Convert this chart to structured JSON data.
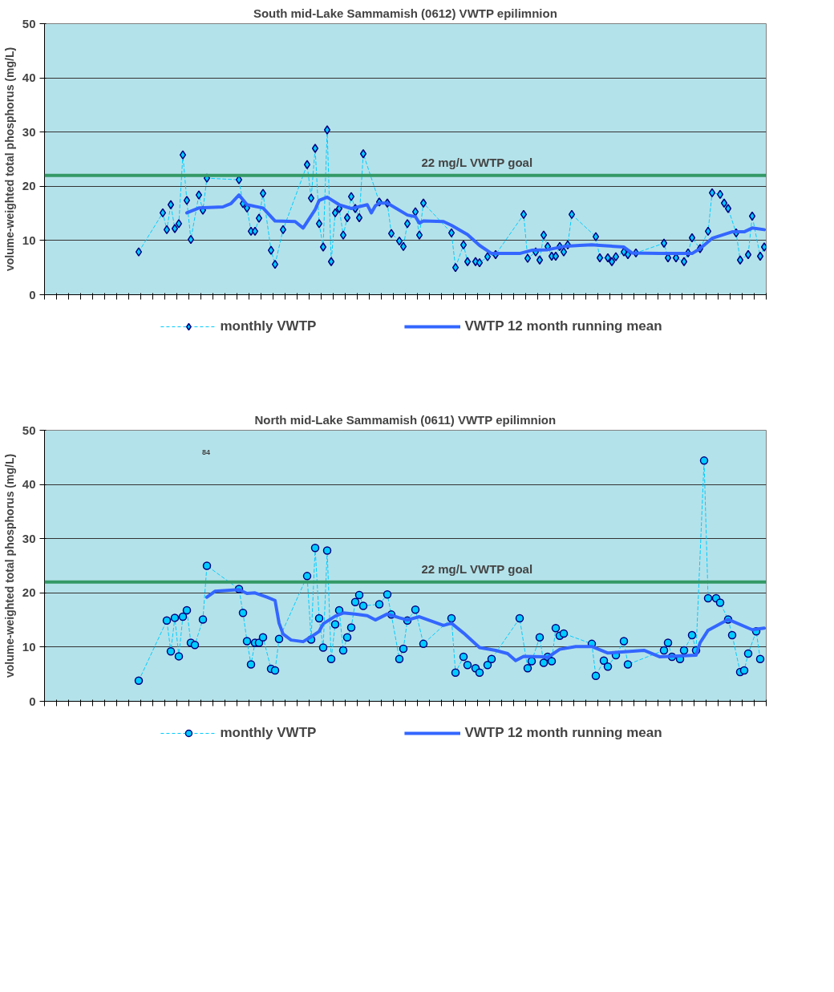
{
  "chart_data": [
    {
      "type": "line",
      "title": "South mid-Lake Sammamish (0612) VWTP epilimnion",
      "ylabel": "volume-weighted total phosphorus (mg/L)",
      "categories": [
        null,
        null,
        null,
        null,
        null,
        null,
        null,
        null,
        null,
        null,
        null,
        null,
        null,
        null,
        null,
        null,
        null,
        null,
        null,
        null,
        null,
        null,
        null,
        null,
        null,
        null,
        null,
        null,
        null,
        null,
        null,
        null,
        null,
        null,
        null,
        null,
        null,
        null,
        null,
        null,
        null,
        null,
        null,
        null,
        null,
        null,
        null,
        null,
        null,
        null,
        null,
        null,
        null,
        null,
        null,
        null,
        null,
        null,
        null,
        null,
        null,
        null,
        null,
        null,
        null,
        null,
        null,
        null,
        null,
        null,
        null,
        null,
        null,
        null,
        null,
        null,
        null,
        null,
        null,
        null,
        null,
        null,
        null,
        null,
        null,
        null,
        null,
        null,
        null,
        null,
        null,
        null,
        null,
        null,
        null,
        null,
        null,
        null,
        null,
        null,
        null,
        null,
        null,
        null,
        null,
        null,
        null,
        null,
        null,
        null,
        null,
        null,
        null,
        null,
        null,
        null,
        null,
        null,
        null,
        null,
        null,
        null,
        null,
        null,
        null,
        null,
        null,
        null,
        null,
        null,
        null,
        null,
        null,
        null,
        null,
        null,
        null,
        null,
        null,
        null,
        null,
        null,
        null,
        null,
        null,
        null,
        null,
        null,
        null,
        null,
        null,
        null,
        null,
        null,
        null,
        null,
        null,
        null,
        null,
        null,
        null,
        null,
        null,
        null,
        null,
        null,
        null,
        null,
        null,
        null,
        null,
        null,
        null,
        null,
        null,
        null,
        null,
        null,
        null,
        null
      ],
      "series": [
        {
          "name": "monthly VWTP",
          "color": "#00ccff",
          "marker": "diamond",
          "line_style": "dashed",
          "values": [
            null,
            null,
            null,
            null,
            null,
            null,
            null,
            null,
            null,
            null,
            null,
            null,
            null,
            null,
            null,
            null,
            null,
            null,
            null,
            null,
            null,
            null,
            null,
            7.9,
            null,
            null,
            null,
            null,
            null,
            15.1,
            12.0,
            16.6,
            12.2,
            13.1,
            25.8,
            17.4,
            10.2,
            null,
            18.4,
            15.6,
            21.5,
            null,
            null,
            null,
            null,
            null,
            null,
            null,
            21.2,
            16.8,
            16.0,
            11.7,
            11.7,
            14.1,
            18.7,
            null,
            8.2,
            5.6,
            null,
            12.0,
            null,
            null,
            null,
            null,
            null,
            24.0,
            17.8,
            27.0,
            13.1,
            8.8,
            30.4,
            6.1,
            15.1,
            15.9,
            11.0,
            14.2,
            18.1,
            15.9,
            14.2,
            26.0,
            null,
            null,
            null,
            17.1,
            null,
            16.9,
            11.3,
            null,
            9.9,
            8.9,
            13.1,
            null,
            15.3,
            11.0,
            16.9,
            null,
            null,
            null,
            null,
            null,
            null,
            11.4,
            5.0,
            null,
            9.2,
            6.1,
            null,
            6.1,
            5.9,
            null,
            7.0,
            null,
            7.4,
            null,
            null,
            null,
            null,
            null,
            null,
            14.8,
            6.7,
            null,
            7.9,
            6.4,
            11.0,
            8.9,
            7.1,
            7.1,
            8.9,
            7.9,
            9.2,
            14.8,
            null,
            null,
            null,
            null,
            null,
            10.7,
            6.8,
            null,
            6.8,
            6.1,
            7.0,
            null,
            7.9,
            7.4,
            null,
            7.7,
            null,
            null,
            null,
            null,
            null,
            null,
            9.5,
            6.8,
            null,
            6.8,
            null,
            6.1,
            7.7,
            10.5,
            null,
            8.5,
            null,
            11.7,
            18.8,
            null,
            18.5,
            16.9,
            15.9,
            null,
            11.4,
            6.4,
            null,
            7.4,
            14.5,
            null,
            7.1,
            8.8
          ]
        },
        {
          "name": "VWTP 12 month running mean",
          "color": "#3366ff",
          "marker": "none",
          "line_style": "solid",
          "values": [
            null,
            null,
            null,
            null,
            null,
            null,
            null,
            null,
            null,
            null,
            null,
            null,
            null,
            null,
            null,
            null,
            null,
            null,
            null,
            null,
            null,
            null,
            null,
            null,
            null,
            null,
            null,
            null,
            null,
            null,
            null,
            null,
            null,
            null,
            null,
            15.1,
            null,
            null,
            16.0,
            null,
            null,
            null,
            null,
            null,
            16.2,
            null,
            16.8,
            null,
            18.4,
            null,
            16.6,
            null,
            null,
            null,
            16.0,
            null,
            null,
            13.6,
            null,
            null,
            null,
            null,
            13.5,
            null,
            12.3,
            null,
            null,
            15.7,
            17.4,
            null,
            18.0,
            null,
            null,
            16.6,
            null,
            null,
            15.9,
            null,
            null,
            null,
            16.6,
            15.1,
            16.4,
            16.9,
            null,
            16.9,
            null,
            null,
            null,
            null,
            14.7,
            null,
            14.4,
            13.2,
            13.6,
            null,
            null,
            null,
            null,
            13.5,
            null,
            12.8,
            null,
            null,
            null,
            11.1,
            null,
            null,
            9.1,
            null,
            null,
            7.6,
            null,
            null,
            null,
            null,
            null,
            null,
            7.6,
            null,
            null,
            8.2,
            null,
            null,
            null,
            8.3,
            null,
            null,
            null,
            8.9,
            null,
            null,
            null,
            9.1,
            null,
            null,
            9.2,
            null,
            9.1,
            null,
            null,
            null,
            null,
            null,
            8.8,
            null,
            7.7,
            null,
            null,
            null,
            null,
            null,
            null,
            7.6,
            null,
            null,
            null,
            null,
            null,
            null,
            null,
            7.6,
            null,
            8.5,
            null,
            null,
            10.4,
            null,
            null,
            null,
            null,
            11.6,
            null,
            null,
            11.6,
            null,
            12.3,
            null,
            null,
            12.0
          ]
        }
      ],
      "ref_lines": [
        {
          "axis": "y",
          "value": 22,
          "label": "22 mg/L VWTP goal",
          "color": "#339966"
        }
      ],
      "ylim": [
        0,
        50
      ],
      "yticks": [
        0,
        10,
        20,
        30,
        40,
        50
      ],
      "grid": "y",
      "legend": "bottom",
      "tick_labels": "y"
    },
    {
      "type": "line",
      "title": "North mid-Lake Sammamish (0611) VWTP epilimnion",
      "ylabel": "volume-weighted total phosphorus (mg/L)",
      "categories": [
        null,
        null,
        null,
        null,
        null,
        null,
        null,
        null,
        null,
        null,
        null,
        null,
        null,
        null,
        null,
        null,
        null,
        null,
        null,
        null,
        null,
        null,
        null,
        null,
        null,
        null,
        null,
        null,
        null,
        null,
        null,
        null,
        null,
        null,
        null,
        null,
        null,
        null,
        null,
        null,
        null,
        null,
        null,
        null,
        null,
        null,
        null,
        null,
        null,
        null,
        null,
        null,
        null,
        null,
        null,
        null,
        null,
        null,
        null,
        null,
        null,
        null,
        null,
        null,
        null,
        null,
        null,
        null,
        null,
        null,
        null,
        null,
        null,
        null,
        null,
        null,
        null,
        null,
        null,
        null,
        null,
        null,
        null,
        null,
        null,
        null,
        null,
        null,
        null,
        null,
        null,
        null,
        null,
        null,
        null,
        null,
        null,
        null,
        null,
        null,
        null,
        null,
        null,
        null,
        null,
        null,
        null,
        null,
        null,
        null,
        null,
        null,
        null,
        null,
        null,
        null,
        null,
        null,
        null,
        null,
        null,
        null,
        null,
        null,
        null,
        null,
        null,
        null,
        null,
        null,
        null,
        null,
        null,
        null,
        null,
        null,
        null,
        null,
        null,
        null,
        null,
        null,
        null,
        null,
        null,
        null,
        null,
        null,
        null,
        null,
        null,
        null,
        null,
        null,
        null,
        null,
        null,
        null,
        null,
        null,
        null,
        null,
        null,
        null,
        null,
        null,
        null,
        null,
        null,
        null,
        null,
        null,
        null,
        null,
        null,
        null,
        null,
        null,
        null,
        null
      ],
      "series": [
        {
          "name": "monthly VWTP",
          "color": "#00ccff",
          "marker": "circle",
          "line_style": "dashed",
          "values": [
            null,
            null,
            null,
            null,
            null,
            null,
            null,
            null,
            null,
            null,
            null,
            null,
            null,
            null,
            null,
            null,
            null,
            null,
            null,
            null,
            null,
            null,
            null,
            3.8,
            null,
            null,
            null,
            null,
            null,
            null,
            14.9,
            9.2,
            15.4,
            8.3,
            15.6,
            16.8,
            10.8,
            10.4,
            null,
            15.1,
            25.0,
            null,
            null,
            null,
            null,
            null,
            null,
            null,
            20.7,
            16.3,
            11.1,
            6.8,
            10.8,
            10.8,
            11.8,
            null,
            6.0,
            5.7,
            11.5,
            null,
            null,
            null,
            null,
            null,
            null,
            23.1,
            11.4,
            28.3,
            15.3,
            9.9,
            27.8,
            7.8,
            14.2,
            16.8,
            9.4,
            11.8,
            13.6,
            18.3,
            19.6,
            17.6,
            null,
            null,
            null,
            17.9,
            null,
            19.7,
            16.0,
            null,
            7.8,
            9.7,
            14.9,
            null,
            16.9,
            null,
            10.6,
            null,
            null,
            null,
            null,
            null,
            null,
            15.3,
            5.3,
            null,
            8.2,
            6.7,
            null,
            6.1,
            5.3,
            null,
            6.7,
            7.8,
            null,
            null,
            null,
            null,
            null,
            null,
            15.3,
            null,
            6.1,
            7.4,
            null,
            11.8,
            7.1,
            8.2,
            7.4,
            13.5,
            12.1,
            12.5,
            null,
            null,
            null,
            null,
            null,
            null,
            10.6,
            4.7,
            null,
            7.5,
            6.4,
            null,
            8.5,
            null,
            11.1,
            6.8,
            null,
            null,
            null,
            null,
            null,
            null,
            null,
            null,
            9.4,
            10.8,
            8.2,
            null,
            7.8,
            9.4,
            null,
            12.2,
            9.4,
            null,
            44.4,
            19.0,
            null,
            19.0,
            18.2,
            null,
            15.1,
            12.2,
            null,
            5.4,
            5.7,
            8.8,
            null,
            12.9,
            7.8,
            null
          ]
        },
        {
          "name": "VWTP 12 month running mean",
          "color": "#3366ff",
          "marker": "none",
          "line_style": "solid",
          "values": [
            null,
            null,
            null,
            null,
            null,
            null,
            null,
            null,
            null,
            null,
            null,
            null,
            null,
            null,
            null,
            null,
            null,
            null,
            null,
            null,
            null,
            null,
            null,
            null,
            null,
            null,
            null,
            null,
            null,
            null,
            null,
            null,
            null,
            null,
            null,
            null,
            null,
            null,
            null,
            null,
            19.2,
            null,
            20.3,
            null,
            null,
            null,
            null,
            null,
            20.6,
            null,
            19.9,
            null,
            20.0,
            null,
            null,
            19.2,
            null,
            18.6,
            14.4,
            12.4,
            null,
            11.3,
            null,
            null,
            11.0,
            null,
            11.9,
            null,
            12.9,
            14.3,
            null,
            null,
            15.7,
            null,
            16.3,
            null,
            null,
            16.1,
            null,
            null,
            15.8,
            null,
            15.0,
            null,
            null,
            16.1,
            null,
            null,
            15.4,
            null,
            15.0,
            null,
            null,
            15.6,
            null,
            null,
            null,
            null,
            null,
            14.0,
            null,
            14.4,
            null,
            null,
            12.6,
            null,
            null,
            null,
            9.9,
            null,
            null,
            null,
            9.4,
            null,
            null,
            8.8,
            null,
            7.5,
            null,
            8.3,
            null,
            null,
            null,
            null,
            8.2,
            8.1,
            null,
            null,
            9.6,
            null,
            null,
            null,
            10.1,
            null,
            null,
            null,
            10.1,
            null,
            null,
            null,
            8.9,
            null,
            null,
            null,
            null,
            null,
            null,
            null,
            null,
            9.4,
            null,
            null,
            null,
            8.2,
            null,
            null,
            null,
            null,
            null,
            null,
            null,
            null,
            8.5,
            10.8,
            null,
            13.1,
            null,
            null,
            null,
            null,
            15.1,
            null,
            null,
            null,
            null,
            null,
            13.2,
            null,
            null,
            13.5
          ]
        }
      ],
      "annotations": [
        "84"
      ],
      "ref_lines": [
        {
          "axis": "y",
          "value": 22,
          "label": "22 mg/L VWTP goal",
          "color": "#339966"
        }
      ],
      "ylim": [
        0,
        50
      ],
      "yticks": [
        0,
        10,
        20,
        30,
        40,
        50
      ],
      "grid": "y",
      "legend": "bottom",
      "tick_labels": "y"
    }
  ]
}
